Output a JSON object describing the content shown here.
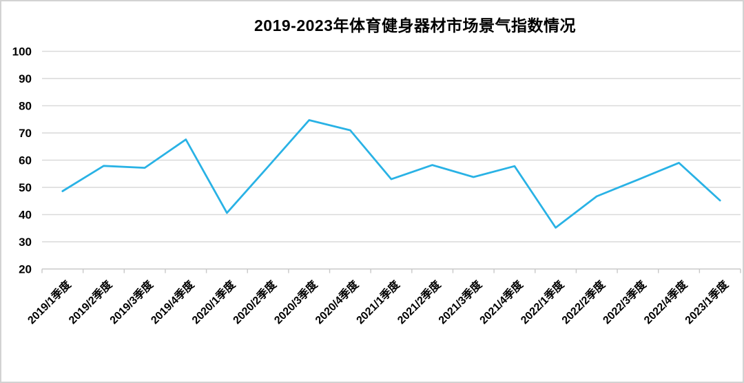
{
  "page": {
    "background_color": "#ffffff",
    "border_color": "#d2d2d2"
  },
  "chart_data": {
    "type": "line",
    "title": "2019-2023年体育健身器材市场景气指数情况",
    "categories": [
      "2019/1季度",
      "2019/2季度",
      "2019/3季度",
      "2019/4季度",
      "2020/1季度",
      "2020/2季度",
      "2020/3季度",
      "2020/4季度",
      "2021/1季度",
      "2021/2季度",
      "2021/3季度",
      "2021/4季度",
      "2022/1季度",
      "2022/2季度",
      "2022/3季度",
      "2022/4季度",
      "2023/1季度"
    ],
    "values": [
      48.6,
      57.9,
      57.2,
      67.6,
      40.6,
      57.6,
      74.7,
      71.0,
      53.0,
      58.2,
      53.8,
      57.8,
      35.2,
      46.7,
      52.8,
      59.0,
      45.2
    ],
    "xlabel": "",
    "ylabel": "",
    "ylim": [
      20,
      100
    ],
    "yticks": [
      20,
      30,
      40,
      50,
      60,
      70,
      80,
      90,
      100
    ],
    "grid": true,
    "legend_position": "none",
    "line_color": "#29b2e5",
    "grid_color": "#d9d9d9",
    "axis_color": "#c8c8c8",
    "tick_label_color": "#000000"
  }
}
